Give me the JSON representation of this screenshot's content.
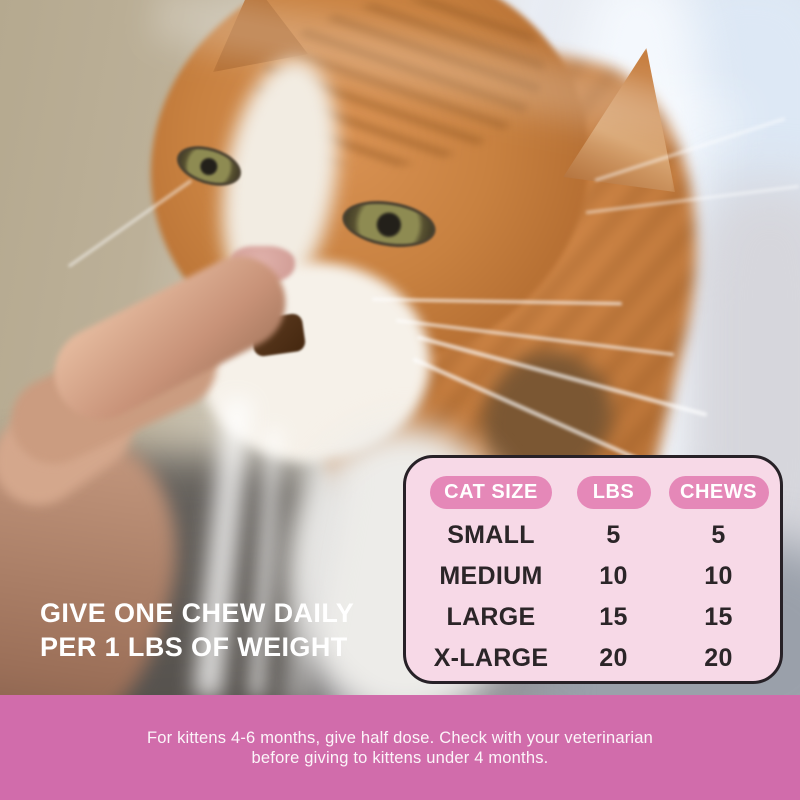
{
  "headline": {
    "line1": "GIVE ONE CHEW DAILY",
    "line2": "PER 1 LBS OF WEIGHT"
  },
  "table": {
    "columns": [
      "CAT SIZE",
      "LBS",
      "CHEWS"
    ],
    "rows": [
      {
        "size": "SMALL",
        "lbs": "5",
        "chews": "5"
      },
      {
        "size": "MEDIUM",
        "lbs": "10",
        "chews": "10"
      },
      {
        "size": "LARGE",
        "lbs": "15",
        "chews": "15"
      },
      {
        "size": "X-LARGE",
        "lbs": "20",
        "chews": "20"
      }
    ]
  },
  "footer": {
    "line1": "For kittens 4-6 months, give half dose. Check with your veterinarian",
    "line2": "before giving to kittens under 4 months."
  },
  "colors": {
    "footer_bar": "#d16cab",
    "table_background": "#f7d9e7",
    "table_border": "#272127",
    "header_pill": "#e588b8",
    "header_pill_text": "#ffffff",
    "table_text": "#2b2528",
    "headline_text": "#ffffff"
  }
}
